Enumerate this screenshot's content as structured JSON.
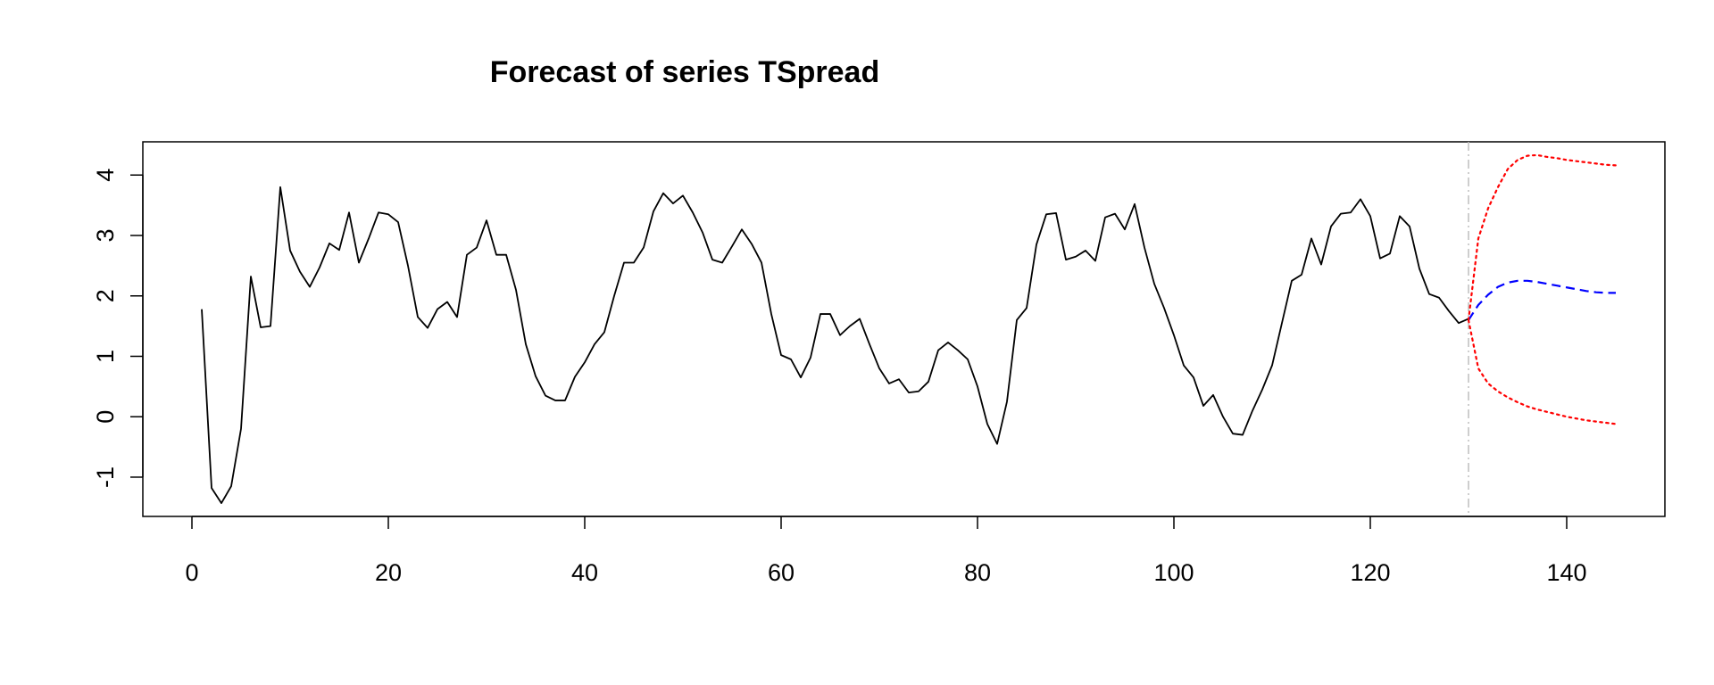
{
  "chart_data": {
    "type": "line",
    "title": "Forecast of series TSpread",
    "xlabel": "",
    "ylabel": "",
    "xlim": [
      -5,
      150
    ],
    "ylim": [
      -1.65,
      4.55
    ],
    "x_ticks": [
      0,
      20,
      40,
      60,
      80,
      100,
      120,
      140
    ],
    "y_ticks": [
      -1,
      0,
      1,
      2,
      3,
      4
    ],
    "forecast_origin": 130,
    "grid": false,
    "series": [
      {
        "color": "#000000",
        "style": "solid",
        "x_start": 1,
        "values": [
          1.78,
          -1.18,
          -1.43,
          -1.15,
          -0.2,
          2.32,
          1.48,
          1.5,
          3.8,
          2.75,
          2.4,
          2.15,
          2.47,
          2.87,
          2.76,
          3.38,
          2.55,
          2.95,
          3.38,
          3.35,
          3.22,
          2.5,
          1.65,
          1.47,
          1.78,
          1.9,
          1.65,
          2.68,
          2.8,
          3.25,
          2.68,
          2.68,
          2.1,
          1.2,
          0.67,
          0.35,
          0.27,
          0.27,
          0.66,
          0.9,
          1.2,
          1.4,
          2.0,
          2.55,
          2.55,
          2.8,
          3.4,
          3.7,
          3.53,
          3.66,
          3.38,
          3.05,
          2.6,
          2.55,
          2.82,
          3.1,
          2.86,
          2.55,
          1.7,
          1.02,
          0.95,
          0.65,
          0.98,
          1.7,
          1.7,
          1.35,
          1.5,
          1.62,
          1.2,
          0.8,
          0.55,
          0.62,
          0.4,
          0.42,
          0.58,
          1.1,
          1.23,
          1.1,
          0.95,
          0.5,
          -0.12,
          -0.45,
          0.25,
          1.6,
          1.8,
          2.85,
          3.35,
          3.37,
          2.6,
          2.65,
          2.75,
          2.58,
          3.3,
          3.36,
          3.1,
          3.52,
          2.8,
          2.2,
          1.8,
          1.35,
          0.85,
          0.65,
          0.18,
          0.36,
          0.0,
          -0.28,
          -0.3,
          0.1,
          0.45,
          0.85,
          1.55,
          2.25,
          2.35,
          2.95,
          2.52,
          3.15,
          3.36,
          3.38,
          3.6,
          3.32,
          2.62,
          2.7,
          3.32,
          3.15,
          2.45,
          2.03,
          1.97,
          1.75,
          1.55,
          1.62
        ]
      },
      {
        "color": "#0000ff",
        "style": "dashed",
        "x_start": 130,
        "values": [
          1.6,
          1.85,
          2.02,
          2.15,
          2.22,
          2.25,
          2.25,
          2.23,
          2.2,
          2.17,
          2.14,
          2.11,
          2.08,
          2.06,
          2.05,
          2.05
        ]
      },
      {
        "color": "#ff0000",
        "style": "dotted",
        "x_start": 130,
        "values": [
          1.6,
          2.95,
          3.45,
          3.8,
          4.1,
          4.25,
          4.32,
          4.33,
          4.3,
          4.28,
          4.25,
          4.23,
          4.21,
          4.19,
          4.17,
          4.16
        ]
      },
      {
        "color": "#ff0000",
        "style": "dotted",
        "x_start": 130,
        "values": [
          1.6,
          0.8,
          0.55,
          0.42,
          0.32,
          0.24,
          0.17,
          0.12,
          0.08,
          0.04,
          0.0,
          -0.03,
          -0.06,
          -0.08,
          -0.1,
          -0.12
        ]
      }
    ],
    "forecast_line_color": "#bebebe"
  }
}
